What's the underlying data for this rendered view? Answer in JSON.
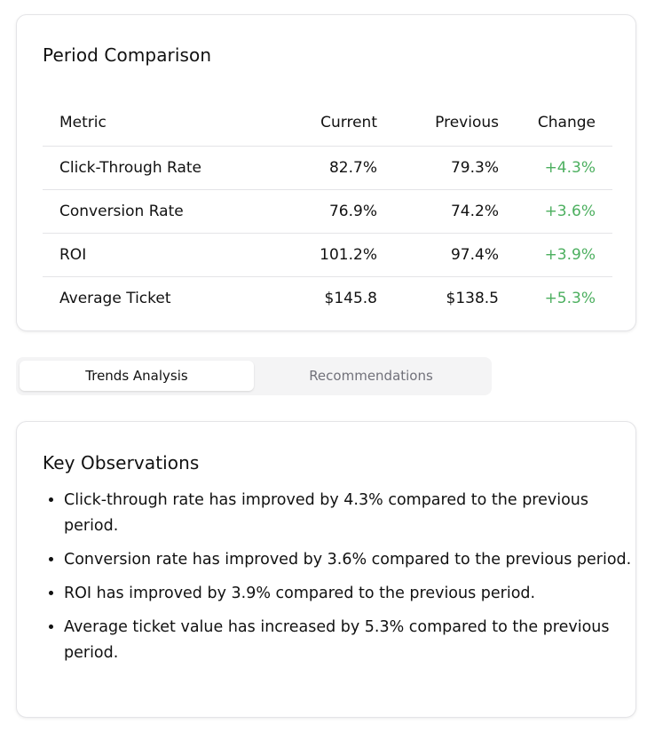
{
  "comparison": {
    "title": "Period Comparison",
    "headers": {
      "metric": "Metric",
      "current": "Current",
      "previous": "Previous",
      "change": "Change"
    },
    "rows": [
      {
        "metric": "Click-Through Rate",
        "current": "82.7%",
        "previous": "79.3%",
        "change": "+4.3%"
      },
      {
        "metric": "Conversion Rate",
        "current": "76.9%",
        "previous": "74.2%",
        "change": "+3.6%"
      },
      {
        "metric": "ROI",
        "current": "101.2%",
        "previous": "97.4%",
        "change": "+3.9%"
      },
      {
        "metric": "Average Ticket",
        "current": "$145.8",
        "previous": "$138.5",
        "change": "+5.3%"
      }
    ],
    "positive_color": "#4caf5f"
  },
  "tabs": {
    "active": "trends",
    "items": [
      {
        "id": "trends",
        "label": "Trends Analysis"
      },
      {
        "id": "recommendations",
        "label": "Recommendations"
      }
    ]
  },
  "observations": {
    "title": "Key Observations",
    "items": [
      "Click-through rate has improved by 4.3% compared to the previous period.",
      "Conversion rate has improved by 3.6% compared to the previous period.",
      "ROI has improved by 3.9% compared to the previous period.",
      "Average ticket value has increased by 5.3% compared to the previous period."
    ]
  }
}
